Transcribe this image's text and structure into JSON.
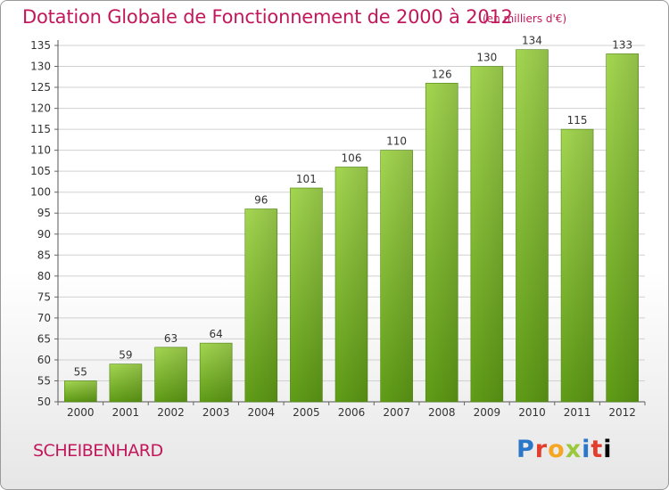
{
  "page": {
    "title": "Dotation Globale de Fonctionnement de 2000 à 2012",
    "subtitle": "(en milliers d'€)",
    "city": "SCHEIBENHARD",
    "logo_letters": [
      "P",
      "r",
      "o",
      "x",
      "i",
      "t",
      "i"
    ]
  },
  "colors": {
    "title": "#c2185b",
    "bar_top": "#9fd24a",
    "bar_bottom": "#5e9a14",
    "grid": "#cccccc"
  },
  "chart_data": {
    "type": "bar",
    "title": "Dotation Globale de Fonctionnement de 2000 à 2012",
    "subtitle": "(en milliers d'€)",
    "categories": [
      "2000",
      "2001",
      "2002",
      "2003",
      "2004",
      "2005",
      "2006",
      "2007",
      "2008",
      "2009",
      "2010",
      "2011",
      "2012"
    ],
    "values": [
      55,
      59,
      63,
      64,
      96,
      101,
      106,
      110,
      126,
      130,
      134,
      115,
      133
    ],
    "ylim": [
      50,
      135
    ],
    "yticks": [
      50,
      55,
      60,
      65,
      70,
      75,
      80,
      85,
      90,
      95,
      100,
      105,
      110,
      115,
      120,
      125,
      130,
      135
    ],
    "grid": true,
    "xlabel": "",
    "ylabel": ""
  }
}
